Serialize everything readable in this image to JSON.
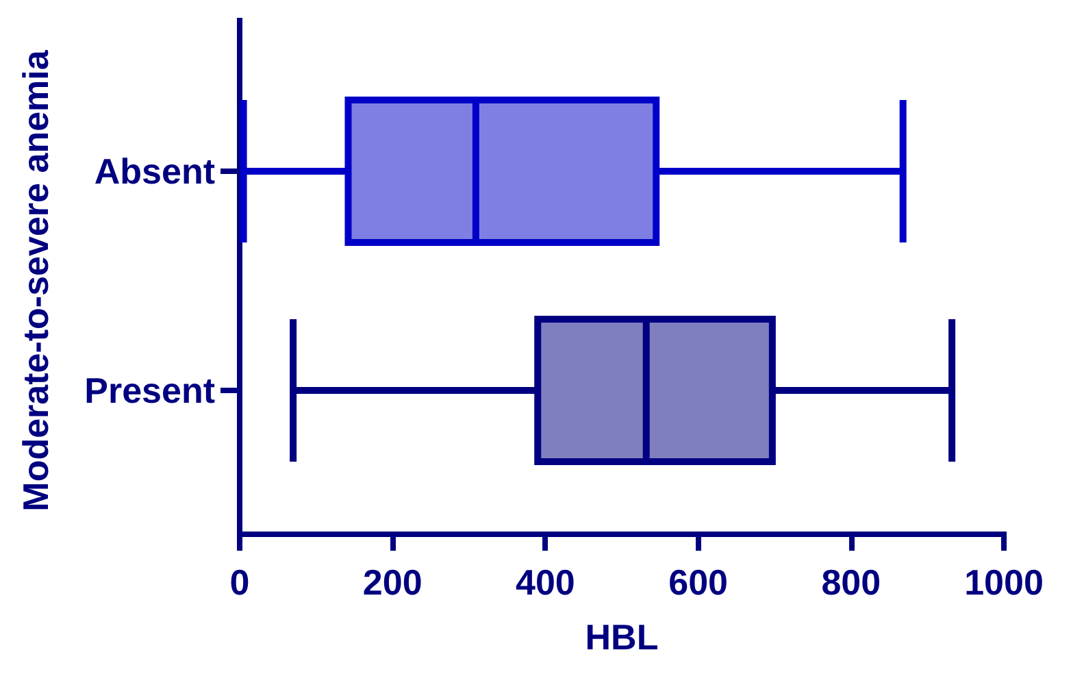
{
  "chart_data": {
    "type": "box",
    "orientation": "horizontal",
    "xlabel": "HBL",
    "ylabel": "Moderate-to-severe anemia",
    "categories": [
      "Absent",
      "Present"
    ],
    "boxes": [
      {
        "low": 5,
        "q1": 142,
        "median": 309,
        "q3": 545,
        "high": 868
      },
      {
        "low": 70,
        "q1": 390,
        "median": 532,
        "q3": 697,
        "high": 932
      }
    ],
    "colors": [
      "#0000c8",
      "#000080"
    ],
    "xlim": [
      0,
      1000
    ],
    "xticks": [
      0,
      200,
      400,
      600,
      800,
      1000
    ]
  }
}
